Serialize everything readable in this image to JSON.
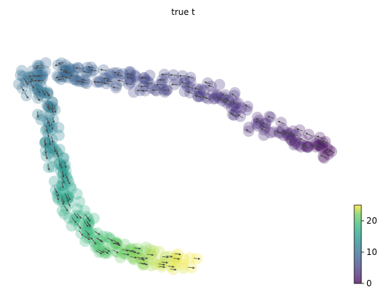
{
  "chart_data": {
    "type": "scatter",
    "title": "true t",
    "xlabel": "",
    "ylabel": "",
    "grid": false,
    "colormap": "viridis",
    "colorbar": {
      "ticks": [
        "0",
        "10",
        "20"
      ],
      "range": [
        0,
        25
      ],
      "placement": "bottom-right"
    },
    "trajectory": {
      "description_points_x": [
        0.02,
        0.12,
        0.22,
        0.35,
        0.48,
        0.6,
        0.72,
        0.84,
        0.94,
        0.08,
        0.1,
        0.12,
        0.16,
        0.22,
        0.3,
        0.4,
        0.52
      ],
      "description_points_y": [
        0.82,
        0.84,
        0.82,
        0.79,
        0.79,
        0.74,
        0.64,
        0.58,
        0.52,
        0.7,
        0.55,
        0.42,
        0.3,
        0.2,
        0.14,
        0.12,
        0.1
      ],
      "t_values": [
        10,
        9,
        8,
        6,
        5,
        4,
        3,
        2,
        0,
        11,
        13,
        15,
        17,
        19,
        21,
        23,
        25
      ]
    },
    "velocity_arrows": true
  }
}
